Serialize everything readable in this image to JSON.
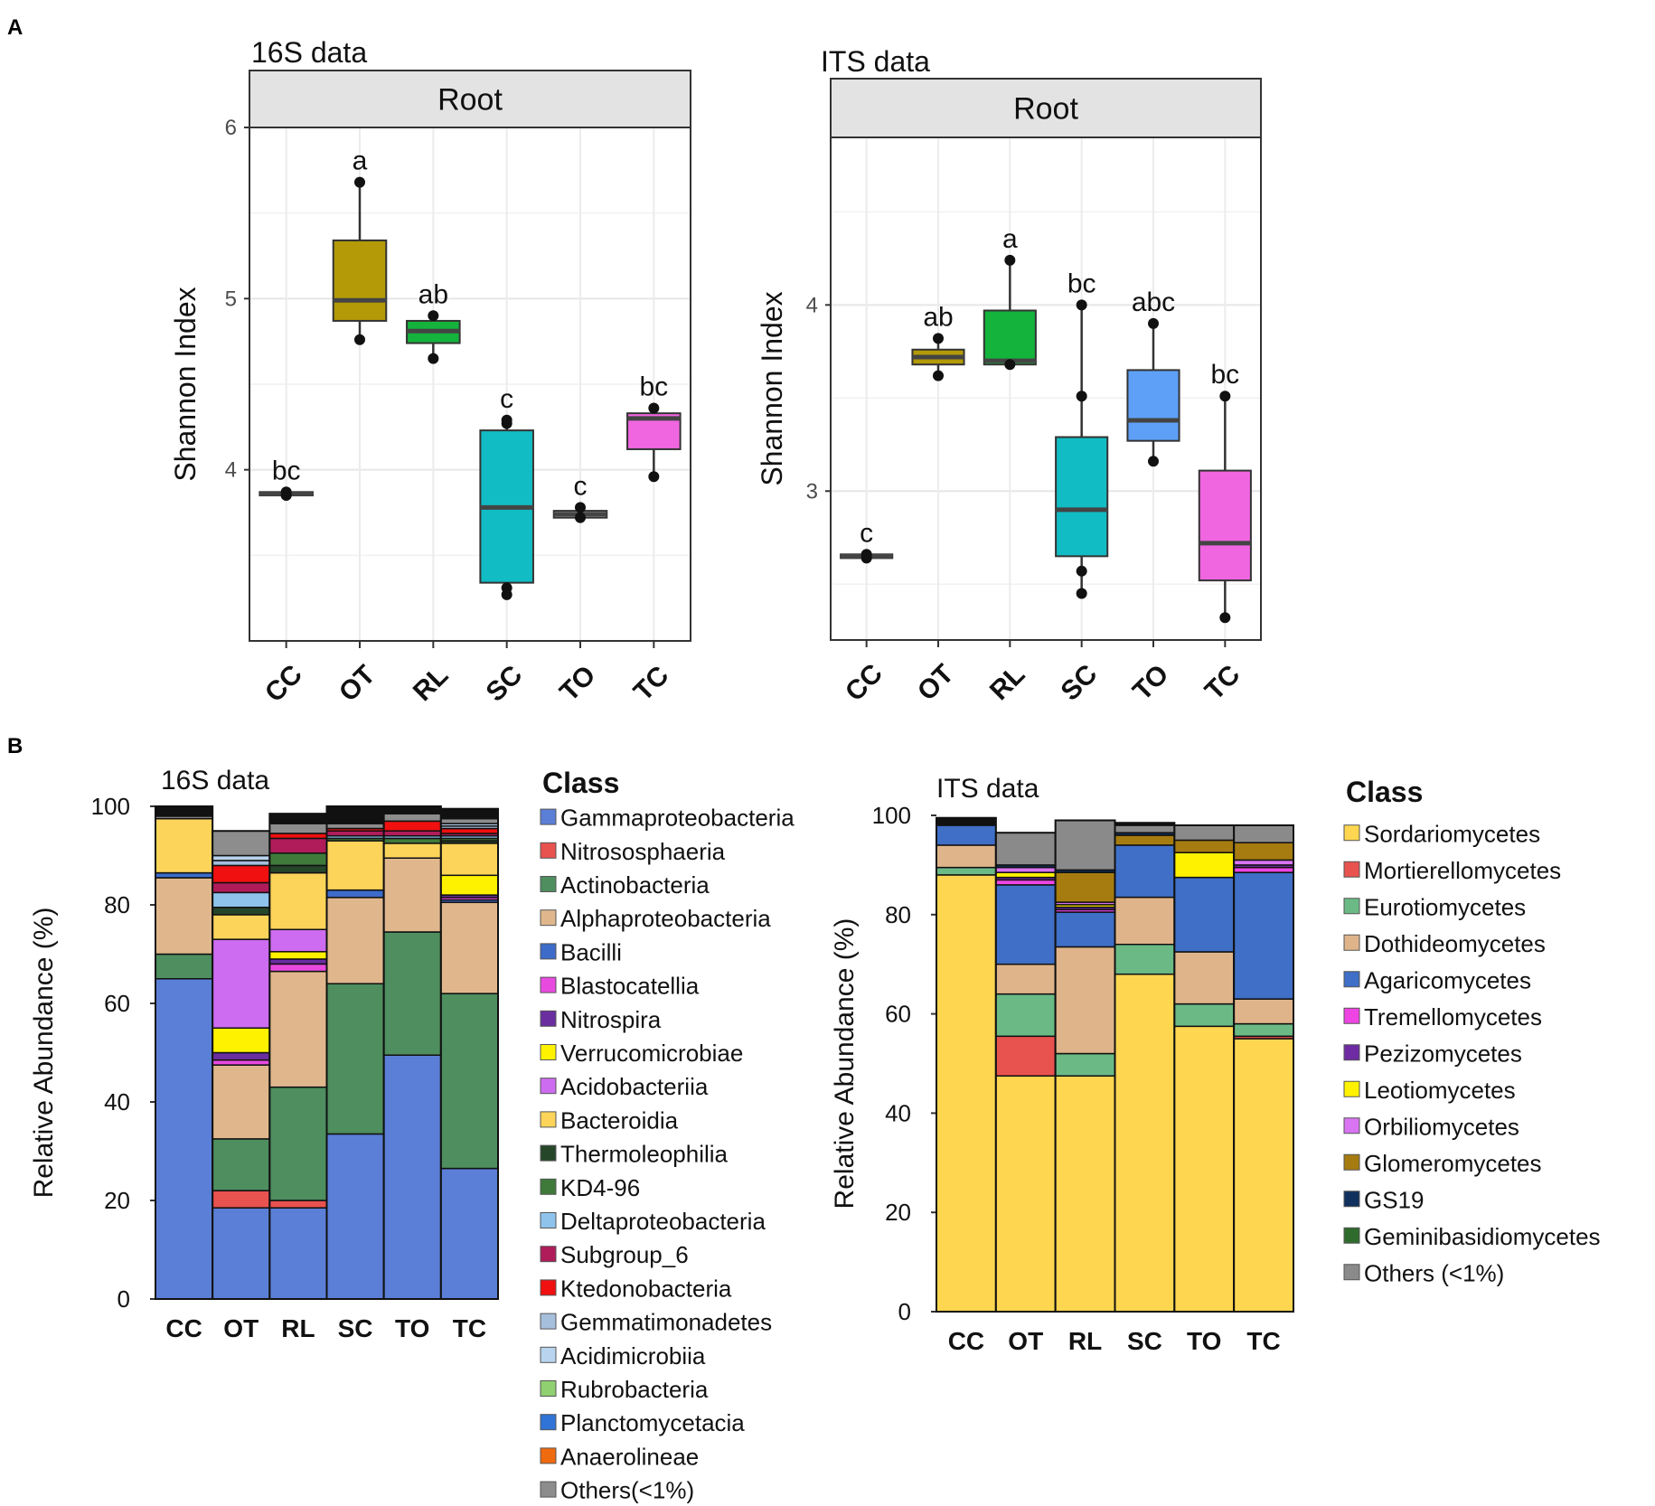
{
  "panel_labels": {
    "a": "A",
    "b": "B"
  },
  "chart_data": [
    {
      "id": "box16s",
      "type": "box",
      "title": "16S data",
      "facet": "Root",
      "ylabel": "Shannon Index",
      "xlabel": "",
      "ylim": [
        3.0,
        6.0
      ],
      "yticks": [
        4,
        5,
        6
      ],
      "categories": [
        "CC",
        "OT",
        "RL",
        "SC",
        "TO",
        "TC"
      ],
      "colors": [
        "#dcdcdc",
        "#b39a06",
        "#14b43c",
        "#12bcc4",
        "#c8c8c8",
        "#f066e0"
      ],
      "boxes": [
        {
          "q1": 3.85,
          "median": 3.86,
          "q3": 3.87,
          "whisker_low": 3.85,
          "whisker_high": 3.87,
          "points": [
            3.85,
            3.87
          ],
          "letter": "bc"
        },
        {
          "q1": 4.87,
          "median": 4.99,
          "q3": 5.34,
          "whisker_low": 4.76,
          "whisker_high": 5.68,
          "points": [
            4.76,
            5.68
          ],
          "letter": "a"
        },
        {
          "q1": 4.74,
          "median": 4.81,
          "q3": 4.87,
          "whisker_low": 4.65,
          "whisker_high": 4.9,
          "points": [
            4.65,
            4.9
          ],
          "letter": "ab"
        },
        {
          "q1": 3.34,
          "median": 3.78,
          "q3": 4.23,
          "whisker_low": 3.27,
          "whisker_high": 4.29,
          "points": [
            3.27,
            3.31,
            4.27,
            4.29
          ],
          "letter": "c"
        },
        {
          "q1": 3.72,
          "median": 3.74,
          "q3": 3.76,
          "whisker_low": 3.72,
          "whisker_high": 3.78,
          "points": [
            3.72,
            3.78
          ],
          "letter": "c"
        },
        {
          "q1": 4.12,
          "median": 4.3,
          "q3": 4.33,
          "whisker_low": 3.96,
          "whisker_high": 4.36,
          "points": [
            3.96,
            4.36
          ],
          "letter": "bc"
        }
      ]
    },
    {
      "id": "boxits",
      "type": "box",
      "title": "ITS data",
      "facet": "Root",
      "ylabel": "Shannon Index",
      "xlabel": "",
      "ylim": [
        2.2,
        4.9
      ],
      "yticks": [
        3,
        4
      ],
      "categories": [
        "CC",
        "OT",
        "RL",
        "SC",
        "TO",
        "TC"
      ],
      "colors": [
        "#dcdcdc",
        "#b39a06",
        "#14b43c",
        "#12bcc4",
        "#5ea0f8",
        "#f066e0"
      ],
      "boxes": [
        {
          "q1": 2.64,
          "median": 2.65,
          "q3": 2.66,
          "whisker_low": 2.64,
          "whisker_high": 2.66,
          "points": [
            2.64,
            2.66
          ],
          "letter": "c"
        },
        {
          "q1": 3.68,
          "median": 3.72,
          "q3": 3.76,
          "whisker_low": 3.62,
          "whisker_high": 3.82,
          "points": [
            3.62,
            3.82
          ],
          "letter": "ab"
        },
        {
          "q1": 3.68,
          "median": 3.7,
          "q3": 3.97,
          "whisker_low": 3.68,
          "whisker_high": 4.24,
          "points": [
            3.68,
            4.24
          ],
          "letter": "a"
        },
        {
          "q1": 2.65,
          "median": 2.9,
          "q3": 3.29,
          "whisker_low": 2.45,
          "whisker_high": 4.0,
          "points": [
            2.45,
            2.57,
            3.51,
            4.0
          ],
          "letter": "bc"
        },
        {
          "q1": 3.27,
          "median": 3.38,
          "q3": 3.65,
          "whisker_low": 3.16,
          "whisker_high": 3.9,
          "points": [
            3.16,
            3.9
          ],
          "letter": "abc"
        },
        {
          "q1": 2.52,
          "median": 2.72,
          "q3": 3.11,
          "whisker_low": 2.32,
          "whisker_high": 3.51,
          "points": [
            2.32,
            3.51
          ],
          "letter": "bc"
        }
      ]
    },
    {
      "id": "bar16s",
      "type": "stacked-bar",
      "title": "16S data",
      "ylabel": "Relative Abundance (%)",
      "xlabel": "",
      "ylim": [
        0,
        100
      ],
      "yticks": [
        0,
        20,
        40,
        60,
        80,
        100
      ],
      "categories": [
        "CC",
        "OT",
        "RL",
        "SC",
        "TO",
        "TC"
      ],
      "legend_title": "Class",
      "legend": [
        {
          "name": "Gammaproteobacteria",
          "color": "#5b7fd6"
        },
        {
          "name": "Nitrososphaeria",
          "color": "#e8524f"
        },
        {
          "name": "Actinobacteria",
          "color": "#4e8e5f"
        },
        {
          "name": "Alphaproteobacteria",
          "color": "#e0b78c"
        },
        {
          "name": "Bacilli",
          "color": "#3c6bc9"
        },
        {
          "name": "Blastocatellia",
          "color": "#e84ae0"
        },
        {
          "name": "Nitrospira",
          "color": "#6a2ea0"
        },
        {
          "name": "Verrucomicrobiae",
          "color": "#fff200"
        },
        {
          "name": "Acidobacteriia",
          "color": "#cd6cf0"
        },
        {
          "name": "Bacteroidia",
          "color": "#fcd45a"
        },
        {
          "name": "Thermoleophilia",
          "color": "#26462a"
        },
        {
          "name": "KD4-96",
          "color": "#3f7a3a"
        },
        {
          "name": "Deltaproteobacteria",
          "color": "#8fc3ec"
        },
        {
          "name": "Subgroup_6",
          "color": "#b01c5a"
        },
        {
          "name": "Ktedonobacteria",
          "color": "#f01010"
        },
        {
          "name": "Gemmatimonadetes",
          "color": "#a6bfdc"
        },
        {
          "name": "Acidimicrobiia",
          "color": "#b8d4ee"
        },
        {
          "name": "Rubrobacteria",
          "color": "#90d070"
        },
        {
          "name": "Planctomycetacia",
          "color": "#2f74d6"
        },
        {
          "name": "Anaerolineae",
          "color": "#f06a10"
        },
        {
          "name": "Others(<1%)",
          "color": "#8d8d8d"
        }
      ],
      "series": [
        {
          "name": "Gammaproteobacteria",
          "values": [
            65,
            18.5,
            18.5,
            33.5,
            49.5,
            26.5
          ]
        },
        {
          "name": "Nitrososphaeria",
          "values": [
            0,
            3.5,
            1.5,
            0,
            0,
            0
          ]
        },
        {
          "name": "Actinobacteria",
          "values": [
            5,
            10.5,
            23,
            30.5,
            25,
            35.5
          ]
        },
        {
          "name": "Alphaproteobacteria",
          "values": [
            15.5,
            15,
            23.5,
            17.5,
            15,
            18.5
          ]
        },
        {
          "name": "Bacilli",
          "values": [
            1,
            0,
            0,
            1.5,
            0,
            0.5
          ]
        },
        {
          "name": "Blastocatellia",
          "values": [
            0,
            1,
            1.5,
            0,
            0,
            0.5
          ]
        },
        {
          "name": "Nitrospira",
          "values": [
            0,
            1.5,
            1,
            0,
            0,
            0.5
          ]
        },
        {
          "name": "Verrucomicrobiae",
          "values": [
            0,
            5,
            1.5,
            0,
            0,
            4
          ]
        },
        {
          "name": "Acidobacteriia",
          "values": [
            0,
            18,
            4.5,
            0,
            0,
            0
          ]
        },
        {
          "name": "Bacteroidia",
          "values": [
            11,
            5,
            11.5,
            10,
            3,
            6.5
          ]
        },
        {
          "name": "Thermoleophilia",
          "values": [
            0,
            1.5,
            1.5,
            0,
            0,
            0.5
          ]
        },
        {
          "name": "KD4-96",
          "values": [
            0,
            0,
            2.5,
            0.5,
            1,
            0.5
          ]
        },
        {
          "name": "Deltaproteobacteria",
          "values": [
            0,
            3,
            0,
            0.5,
            0.5,
            0.5
          ]
        },
        {
          "name": "Subgroup_6",
          "values": [
            0,
            2,
            3,
            1,
            1,
            0.5
          ]
        },
        {
          "name": "Ktedonobacteria",
          "values": [
            0,
            3.5,
            1,
            0.5,
            2,
            1
          ]
        },
        {
          "name": "Gemmatimonadetes",
          "values": [
            0,
            1,
            0,
            0,
            0,
            0.5
          ]
        },
        {
          "name": "Acidimicrobiia",
          "values": [
            0,
            1,
            0,
            0,
            0,
            0.5
          ]
        },
        {
          "name": "Rubrobacteria",
          "values": [
            0,
            0,
            0,
            0,
            0,
            0
          ]
        },
        {
          "name": "Planctomycetacia",
          "values": [
            0,
            0,
            0,
            0,
            0,
            0
          ]
        },
        {
          "name": "Anaerolineae",
          "values": [
            0,
            0,
            0,
            0,
            0,
            0
          ]
        },
        {
          "name": "Others(<1%)",
          "values": [
            0.5,
            5,
            2,
            1,
            1.5,
            1
          ]
        },
        {
          "name": "",
          "values": [
            2,
            0,
            2,
            3.5,
            1.5,
            2
          ]
        }
      ]
    },
    {
      "id": "barits",
      "type": "stacked-bar",
      "title": "ITS data",
      "ylabel": "Relative Abundance (%)",
      "xlabel": "",
      "ylim": [
        0,
        100
      ],
      "yticks": [
        0,
        20,
        40,
        60,
        80,
        100
      ],
      "categories": [
        "CC",
        "OT",
        "RL",
        "SC",
        "TO",
        "TC"
      ],
      "legend_title": "Class",
      "legend": [
        {
          "name": "Sordariomycetes",
          "color": "#fed650"
        },
        {
          "name": "Mortierellomycetes",
          "color": "#e8524f"
        },
        {
          "name": "Eurotiomycetes",
          "color": "#6bba86"
        },
        {
          "name": "Dothideomycetes",
          "color": "#e0b48a"
        },
        {
          "name": "Agaricomycetes",
          "color": "#3f6fc6"
        },
        {
          "name": "Tremellomycetes",
          "color": "#ef44e4"
        },
        {
          "name": "Pezizomycetes",
          "color": "#6e2ba4"
        },
        {
          "name": "Leotiomycetes",
          "color": "#fff200"
        },
        {
          "name": "Orbiliomycetes",
          "color": "#d974f2"
        },
        {
          "name": "Glomeromycetes",
          "color": "#a67c10"
        },
        {
          "name": "GS19",
          "color": "#10305e"
        },
        {
          "name": "Geminibasidiomycetes",
          "color": "#2e6b2c"
        },
        {
          "name": "Others (<1%)",
          "color": "#8a8a8a"
        }
      ],
      "series": [
        {
          "name": "Sordariomycetes",
          "values": [
            88,
            47.5,
            47.5,
            68,
            57.5,
            55
          ]
        },
        {
          "name": "Mortierellomycetes",
          "values": [
            0,
            8,
            0,
            0,
            0,
            0.5
          ]
        },
        {
          "name": "Eurotiomycetes",
          "values": [
            1.5,
            8.5,
            4.5,
            6,
            4.5,
            2.5
          ]
        },
        {
          "name": "Dothideomycetes",
          "values": [
            4.5,
            6,
            21.5,
            9.5,
            10.5,
            5
          ]
        },
        {
          "name": "Agaricomycetes",
          "values": [
            4,
            16,
            7,
            10.5,
            15,
            25.5
          ]
        },
        {
          "name": "Tremellomycetes",
          "values": [
            0,
            1,
            0.5,
            0,
            0,
            1
          ]
        },
        {
          "name": "Pezizomycetes",
          "values": [
            0,
            0.5,
            0.5,
            0,
            0,
            0.5
          ]
        },
        {
          "name": "Leotiomycetes",
          "values": [
            0,
            1,
            0.5,
            0,
            5,
            0
          ]
        },
        {
          "name": "Orbiliomycetes",
          "values": [
            0,
            1,
            0.5,
            0,
            0,
            1
          ]
        },
        {
          "name": "Glomeromycetes",
          "values": [
            0,
            0,
            6,
            2,
            2.5,
            3.5
          ]
        },
        {
          "name": "GS19",
          "values": [
            0,
            0.5,
            0.5,
            0.5,
            0,
            0
          ]
        },
        {
          "name": "Geminibasidiomycetes",
          "values": [
            0,
            0,
            0,
            0,
            0,
            0
          ]
        },
        {
          "name": "Others (<1%)",
          "values": [
            0,
            6.5,
            10,
            1.5,
            3,
            3.5
          ]
        },
        {
          "name": "",
          "values": [
            1.5,
            0,
            0,
            0.5,
            0,
            0
          ]
        }
      ]
    }
  ]
}
